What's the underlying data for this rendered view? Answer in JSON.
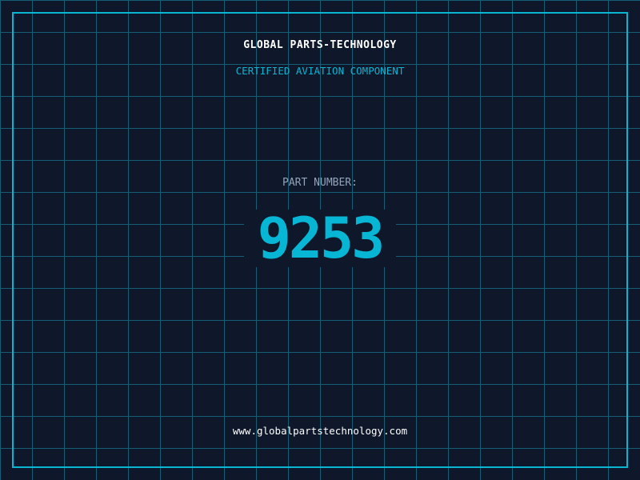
{
  "header": {
    "title": "GLOBAL PARTS-TECHNOLOGY",
    "subtitle": "CERTIFIED AVIATION COMPONENT"
  },
  "part": {
    "label": "PART NUMBER:",
    "number": "9253"
  },
  "footer": {
    "url": "www.globalpartstechnology.com"
  },
  "colors": {
    "background": "#0f172a",
    "accent": "#06b6d4",
    "grid": "#155e75"
  }
}
